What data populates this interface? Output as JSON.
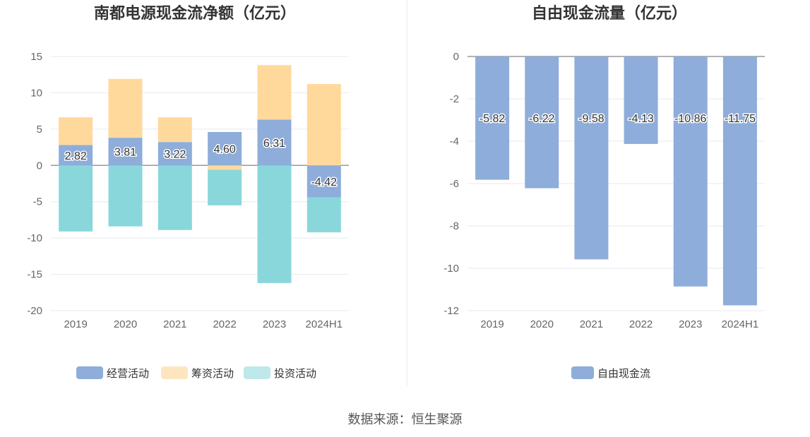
{
  "source_text": "数据来源：恒生聚源",
  "chart_data": [
    {
      "type": "bar",
      "stacked": true,
      "title": "南都电源现金流净额（亿元）",
      "categories": [
        "2019",
        "2020",
        "2021",
        "2022",
        "2023",
        "2024H1"
      ],
      "ylim": [
        -20,
        15
      ],
      "yticks": [
        15,
        10,
        5,
        0,
        -5,
        -10,
        -15,
        -20
      ],
      "grid": true,
      "legend_position": "bottom",
      "series": [
        {
          "name": "经营活动",
          "color": "#8eadda",
          "values": [
            2.82,
            3.81,
            3.22,
            4.6,
            6.31,
            -4.42
          ],
          "labels": [
            "2.82",
            "3.81",
            "3.22",
            "4.60",
            "6.31",
            "-4.42"
          ]
        },
        {
          "name": "筹资活动",
          "color": "#ffd99b",
          "values": [
            3.8,
            8.1,
            3.4,
            -0.6,
            7.5,
            11.2
          ]
        },
        {
          "name": "投资活动",
          "color": "#89d7db",
          "values": [
            -9.1,
            -8.4,
            -8.9,
            -4.9,
            -16.2,
            -4.8
          ]
        }
      ]
    },
    {
      "type": "bar",
      "stacked": false,
      "title": "自由现金流量（亿元）",
      "categories": [
        "2019",
        "2020",
        "2021",
        "2022",
        "2023",
        "2024H1"
      ],
      "ylim": [
        -12,
        0
      ],
      "yticks": [
        0,
        -2,
        -4,
        -6,
        -8,
        -10,
        -12
      ],
      "grid": true,
      "legend_position": "bottom",
      "series": [
        {
          "name": "自由现金流",
          "color": "#8eadda",
          "values": [
            -5.82,
            -6.22,
            -9.58,
            -4.13,
            -10.86,
            -11.75
          ],
          "labels": [
            "-5.82",
            "-6.22",
            "-9.58",
            "-4.13",
            "-10.86",
            "-11.75"
          ]
        }
      ]
    }
  ]
}
